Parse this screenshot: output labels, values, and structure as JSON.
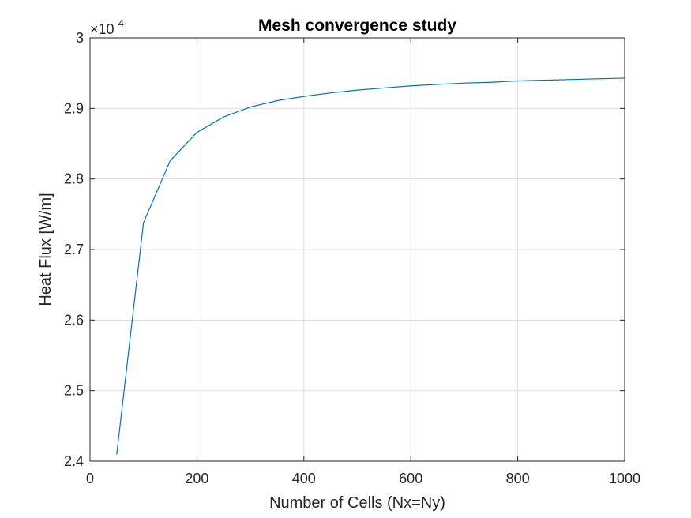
{
  "chart_data": {
    "type": "line",
    "title": "Mesh convergence study",
    "xlabel": "Number of Cells (Nx=Ny)",
    "ylabel": "Heat Flux [W/m]",
    "xlim": [
      0,
      1000
    ],
    "ylim": [
      24000,
      30000
    ],
    "x_ticks": [
      0,
      200,
      400,
      600,
      800,
      1000
    ],
    "x_tick_labels": [
      "0",
      "200",
      "400",
      "600",
      "800",
      "1000"
    ],
    "y_ticks": [
      24000,
      25000,
      26000,
      27000,
      28000,
      29000,
      30000
    ],
    "y_tick_labels": [
      "2.4",
      "2.5",
      "2.6",
      "2.7",
      "2.8",
      "2.9",
      "3"
    ],
    "y_exponent_base": "×10",
    "y_exponent_power": "4",
    "grid": true,
    "series": [
      {
        "color": "#0072BD",
        "x": [
          50,
          100,
          150,
          200,
          250,
          300,
          350,
          400,
          450,
          500,
          550,
          600,
          650,
          700,
          750,
          800,
          850,
          900,
          950,
          1000
        ],
        "y": [
          24100,
          27380,
          28260,
          28660,
          28880,
          29020,
          29110,
          29170,
          29220,
          29260,
          29290,
          29320,
          29340,
          29360,
          29370,
          29390,
          29400,
          29410,
          29420,
          29430
        ]
      }
    ]
  }
}
